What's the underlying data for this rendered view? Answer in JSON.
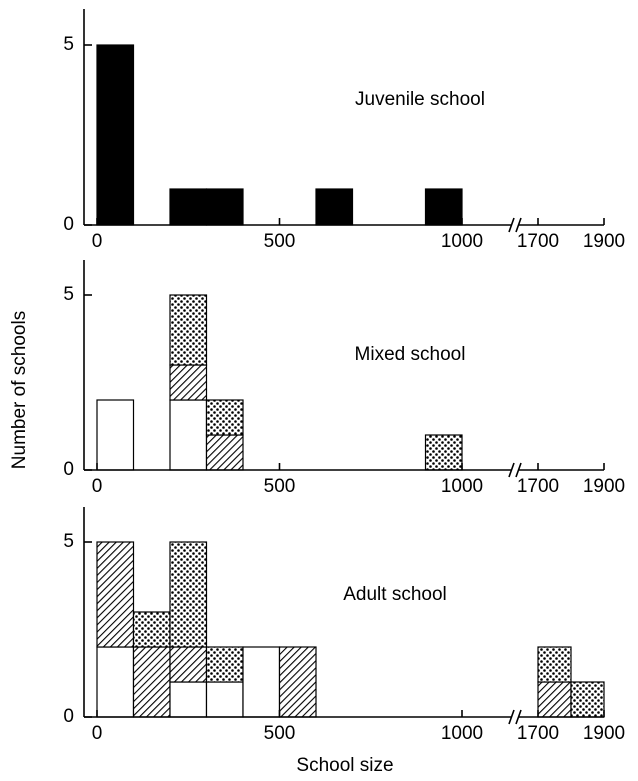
{
  "chart_data": [
    {
      "type": "histogram",
      "title": "Juvenile school",
      "bins": [
        0,
        100,
        200,
        300,
        400,
        500,
        600,
        700,
        800,
        900,
        1000,
        1700,
        1800,
        1900
      ],
      "xbreak": [
        1000,
        1700
      ],
      "series": [
        {
          "pattern": "solid",
          "values": [
            5,
            0,
            1,
            1,
            0,
            0,
            1,
            0,
            0,
            1,
            null,
            0,
            0
          ]
        }
      ],
      "xlim": [
        0,
        1900
      ],
      "xticks": [
        0,
        500,
        1000,
        1700,
        1900
      ],
      "ylim": [
        0,
        6
      ],
      "yticks": [
        0,
        5
      ]
    },
    {
      "type": "histogram",
      "title": "Mixed school",
      "ylabel": "Number of schools",
      "bins": [
        0,
        100,
        200,
        300,
        400,
        500,
        600,
        700,
        800,
        900,
        1000,
        1700,
        1800,
        1900
      ],
      "xbreak": [
        1000,
        1700
      ],
      "series": [
        {
          "pattern": "open",
          "values": [
            2,
            0,
            2,
            0,
            0,
            0,
            0,
            0,
            0,
            0,
            null,
            0,
            0
          ]
        },
        {
          "pattern": "hatch",
          "values": [
            0,
            0,
            1,
            1,
            0,
            0,
            0,
            0,
            0,
            0,
            null,
            0,
            0
          ]
        },
        {
          "pattern": "dots",
          "values": [
            0,
            0,
            2,
            1,
            0,
            0,
            0,
            0,
            0,
            1,
            null,
            0,
            0
          ]
        }
      ],
      "xlim": [
        0,
        1900
      ],
      "xticks": [
        0,
        500,
        1000,
        1700,
        1900
      ],
      "ylim": [
        0,
        6
      ],
      "yticks": [
        0,
        5
      ]
    },
    {
      "type": "histogram",
      "title": "Adult school",
      "xlabel": "School size",
      "bins": [
        0,
        100,
        200,
        300,
        400,
        500,
        600,
        700,
        800,
        900,
        1000,
        1700,
        1800,
        1900
      ],
      "xbreak": [
        1000,
        1700
      ],
      "series": [
        {
          "pattern": "open",
          "values": [
            2,
            0,
            1,
            1,
            2,
            0,
            0,
            0,
            0,
            0,
            null,
            0,
            0
          ]
        },
        {
          "pattern": "hatch",
          "values": [
            3,
            2,
            1,
            0,
            0,
            2,
            0,
            0,
            0,
            0,
            null,
            1,
            0
          ]
        },
        {
          "pattern": "dots",
          "values": [
            0,
            1,
            3,
            1,
            0,
            0,
            0,
            0,
            0,
            0,
            null,
            1,
            1
          ]
        }
      ],
      "xlim": [
        0,
        1900
      ],
      "xticks": [
        0,
        500,
        1000,
        1700,
        1900
      ],
      "ylim": [
        0,
        6
      ],
      "yticks": [
        0,
        5
      ]
    }
  ]
}
